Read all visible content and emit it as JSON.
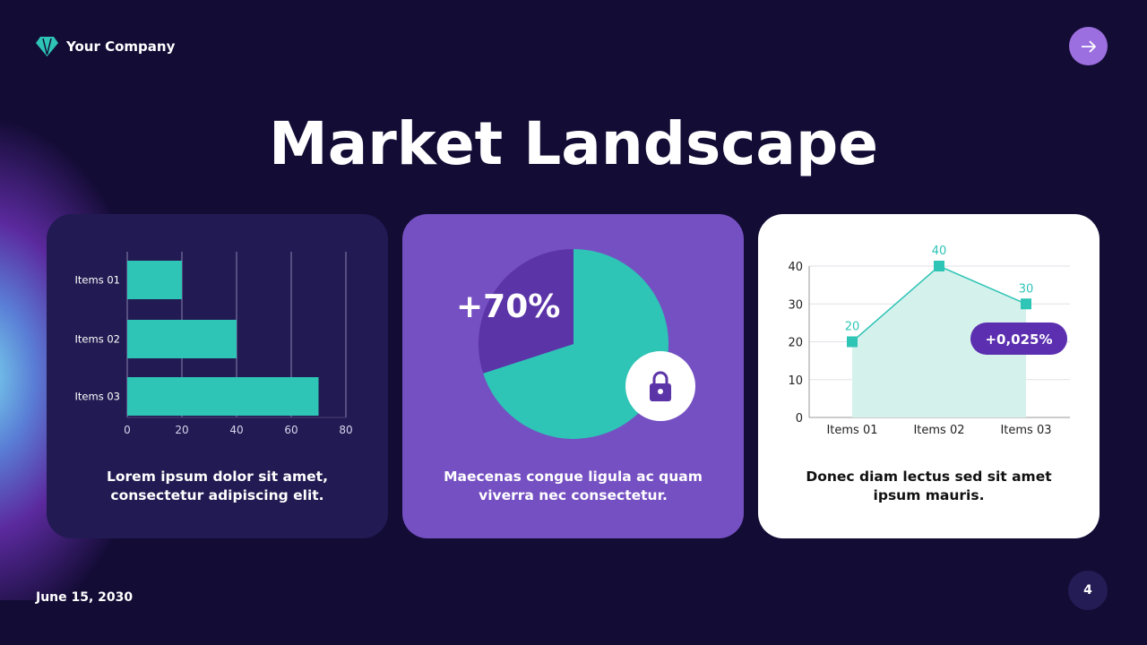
{
  "header": {
    "company": "Your Company",
    "next_icon": "arrow-right-icon",
    "title": "Market Landscape"
  },
  "colors": {
    "background": "#130c35",
    "teal": "#2ec4b6",
    "purple": "#7550c2",
    "dark_purple": "#5b34a8"
  },
  "cards": [
    {
      "caption_line1": "Lorem ipsum dolor sit amet,",
      "caption_line2": "consectetur adipiscing elit."
    },
    {
      "caption_line1": "Maecenas congue ligula ac quam",
      "caption_line2": "viverra nec consectetur.",
      "big_label": "+70%",
      "icon": "lock-icon"
    },
    {
      "caption_line1": "Donec diam lectus sed sit amet",
      "caption_line2": "ipsum mauris.",
      "badge": "+0,025%"
    }
  ],
  "chart_data": [
    {
      "type": "bar",
      "orientation": "horizontal",
      "categories": [
        "Items 01",
        "Items 02",
        "Items 03"
      ],
      "values": [
        20,
        40,
        70
      ],
      "xlim": [
        0,
        80
      ],
      "ticks": [
        "0",
        "20",
        "40",
        "60",
        "80"
      ],
      "grid": true
    },
    {
      "type": "pie",
      "values": [
        70,
        30
      ],
      "label": "+70%"
    },
    {
      "type": "area",
      "categories": [
        "Items 01",
        "Items 02",
        "Items 03"
      ],
      "values": [
        20,
        40,
        30
      ],
      "data_labels": [
        "20",
        "40",
        "30"
      ],
      "ylim": [
        0,
        40
      ],
      "ticks": [
        "0",
        "10",
        "20",
        "30",
        "40"
      ],
      "grid": true
    }
  ],
  "footer": {
    "date": "June 15, 2030",
    "page": "4"
  }
}
